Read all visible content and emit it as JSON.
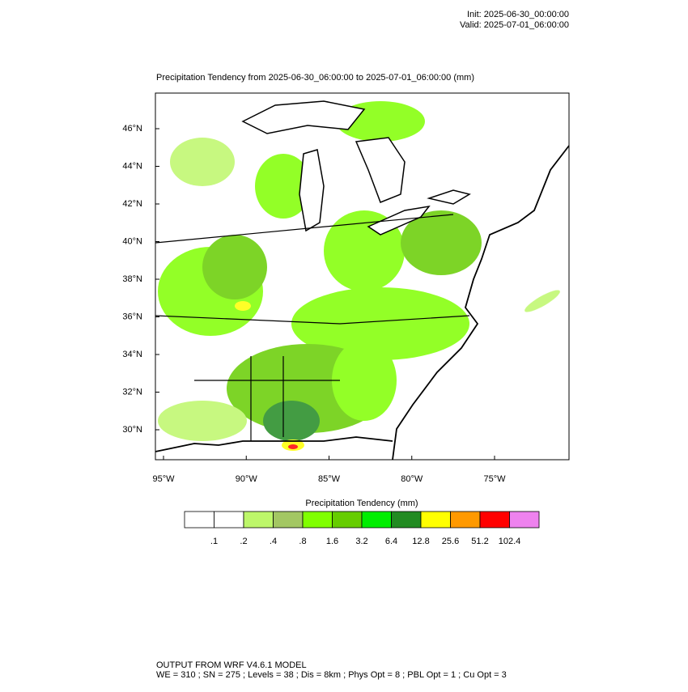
{
  "header": {
    "init": "Init: 2025-06-30_00:00:00",
    "valid": "Valid: 2025-07-01_06:00:00"
  },
  "title": "Precipitation Tendency from 2025-06-30_06:00:00 to 2025-07-01_06:00:00   (mm)",
  "lat_ticks": [
    {
      "value": 46,
      "label": "46°N"
    },
    {
      "value": 44,
      "label": "44°N"
    },
    {
      "value": 42,
      "label": "42°N"
    },
    {
      "value": 40,
      "label": "40°N"
    },
    {
      "value": 38,
      "label": "38°N"
    },
    {
      "value": 36,
      "label": "36°N"
    },
    {
      "value": 34,
      "label": "34°N"
    },
    {
      "value": 32,
      "label": "32°N"
    },
    {
      "value": 30,
      "label": "30°N"
    }
  ],
  "lon_ticks": [
    {
      "value": -95,
      "label": "95°W"
    },
    {
      "value": -90,
      "label": "90°W"
    },
    {
      "value": -85,
      "label": "85°W"
    },
    {
      "value": -80,
      "label": "80°W"
    },
    {
      "value": -75,
      "label": "75°W"
    }
  ],
  "colorbar": {
    "title": "Precipitation Tendency  (mm)",
    "colors": [
      "#ffffff",
      "#ffffff",
      "#bdf76a",
      "#a3c763",
      "#80ff00",
      "#66cd00",
      "#00ee00",
      "#228b22",
      "#ffff00",
      "#ff9900",
      "#ff0000",
      "#ee82ee"
    ],
    "levels": [
      {
        "value": 0.1,
        "label": ".1"
      },
      {
        "value": 0.2,
        "label": ".2"
      },
      {
        "value": 0.4,
        "label": ".4"
      },
      {
        "value": 0.8,
        "label": ".8"
      },
      1.6,
      3.2,
      6.4,
      12.8,
      25.6,
      51.2,
      102.4
    ]
  },
  "footer": {
    "line1": "OUTPUT FROM WRF V4.6.1 MODEL",
    "line2": "WE = 310 ; SN = 275 ; Levels = 38 ; Dis = 8km ; Phys Opt = 8 ; PBL Opt = 1 ; Cu Opt = 3"
  }
}
